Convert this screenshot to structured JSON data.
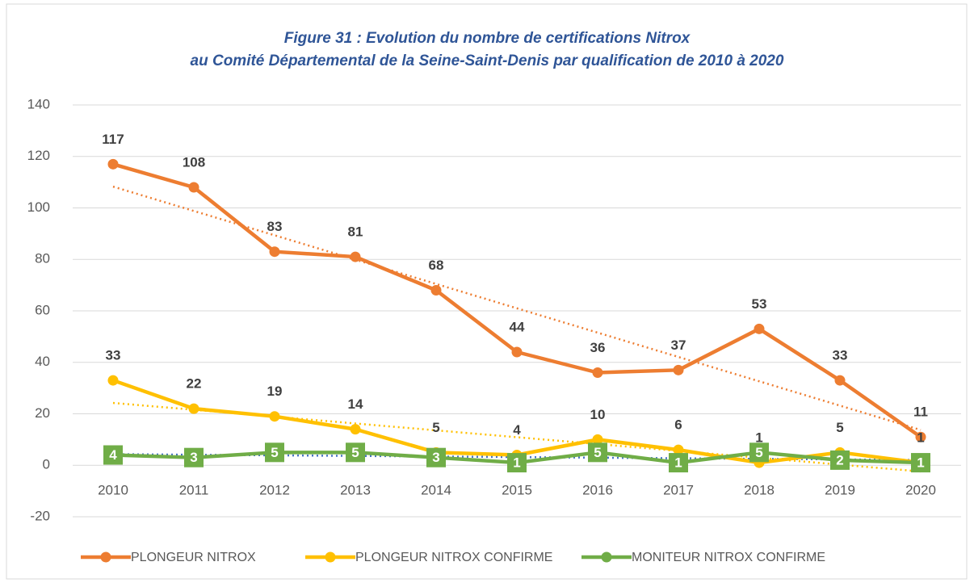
{
  "chart_data": {
    "type": "line",
    "title": "Figure 31 : Evolution du nombre de certifications Nitrox",
    "subtitle": "au Comité Départemental de la Seine-Saint-Denis par qualification de 2010 à 2020",
    "categories": [
      "2010",
      "2011",
      "2012",
      "2013",
      "2014",
      "2015",
      "2016",
      "2017",
      "2018",
      "2019",
      "2020"
    ],
    "series": [
      {
        "name": "PLONGEUR NITROX",
        "color": "#ED7D31",
        "marker": "circle",
        "trendline_color": "#ED7D31",
        "values": [
          117,
          108,
          83,
          81,
          68,
          44,
          36,
          37,
          53,
          33,
          11
        ]
      },
      {
        "name": "PLONGEUR NITROX CONFIRME",
        "color": "#FFC000",
        "marker": "circle",
        "trendline_color": "#FFC000",
        "values": [
          33,
          22,
          19,
          14,
          5,
          4,
          10,
          6,
          1,
          5,
          1
        ]
      },
      {
        "name": "MONITEUR NITROX CONFIRME",
        "color": "#70AD47",
        "marker": "square",
        "trendline_color": "#4472C4",
        "values": [
          4,
          3,
          5,
          5,
          3,
          1,
          5,
          1,
          5,
          2,
          1
        ]
      }
    ],
    "ylim": [
      -20,
      140
    ],
    "yticks": [
      -20,
      0,
      20,
      40,
      60,
      80,
      100,
      120,
      140
    ],
    "grid": true,
    "trendline": true,
    "legend": "bottom"
  }
}
